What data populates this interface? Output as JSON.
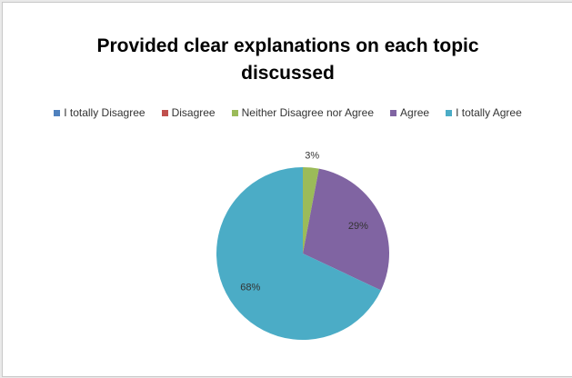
{
  "chart_data": {
    "type": "pie",
    "title_line1": "Provided clear explanations on each topic",
    "title_line2": "discussed",
    "legend_position": "top",
    "slices": [
      {
        "name": "I totally Disagree",
        "value": 0,
        "label": "",
        "color": "#4f81bd"
      },
      {
        "name": "Disagree",
        "value": 0,
        "label": "",
        "color": "#c0504d"
      },
      {
        "name": "Neither Disagree nor Agree",
        "value": 3,
        "label": "3%",
        "color": "#9bbb59"
      },
      {
        "name": "Agree",
        "value": 29,
        "label": "29%",
        "color": "#8064a2"
      },
      {
        "name": "I totally Agree",
        "value": 68,
        "label": "68%",
        "color": "#4bacc6"
      }
    ]
  }
}
